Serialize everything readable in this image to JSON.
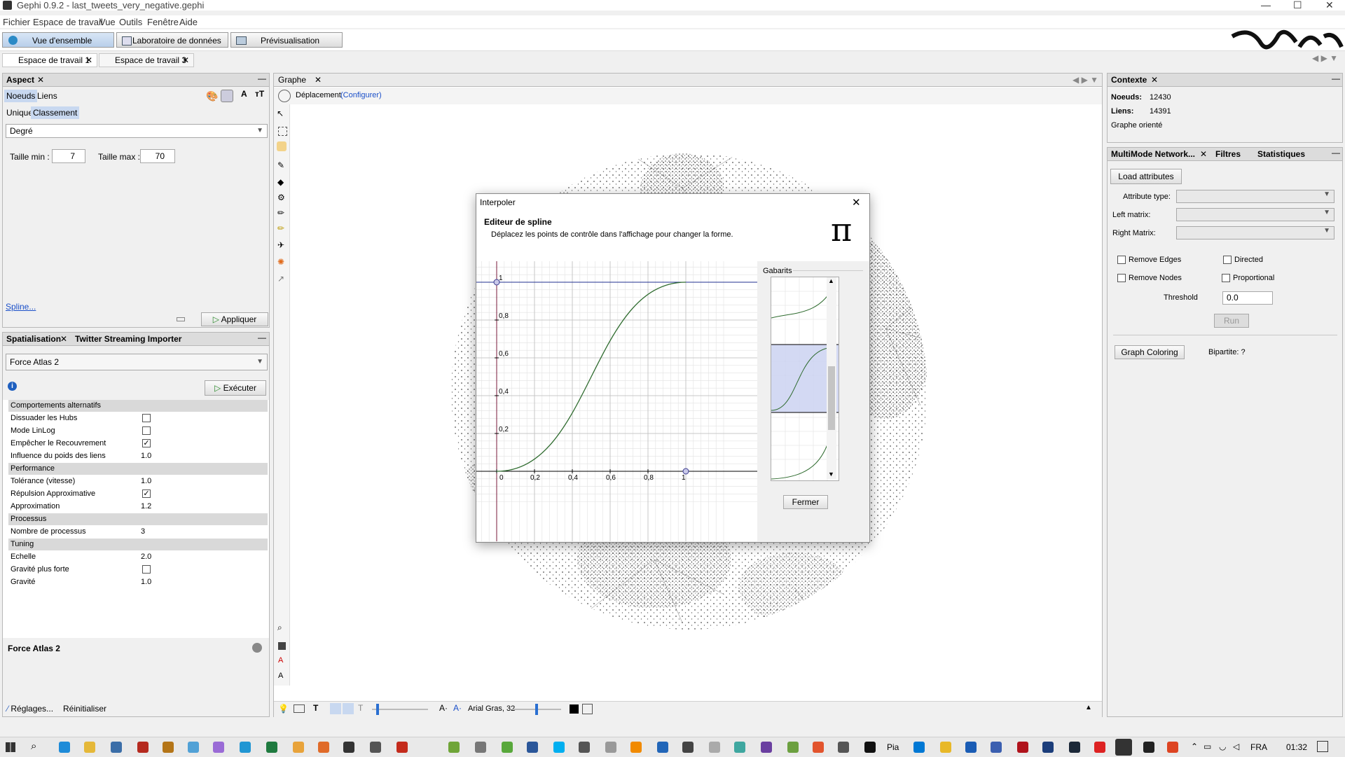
{
  "window": {
    "title": "Gephi 0.9.2 - last_tweets_very_negative.gephi"
  },
  "menu": [
    "Fichier",
    "Espace de travail",
    "Vue",
    "Outils",
    "Fenêtre",
    "Aide"
  ],
  "modes": [
    "Vue d'ensemble",
    "Laboratoire de données",
    "Prévisualisation"
  ],
  "workspaces": [
    "Espace de travail 1",
    "Espace de travail 3"
  ],
  "aspect": {
    "title": "Aspect",
    "tabs": [
      "Noeuds",
      "Liens"
    ],
    "subtabs": [
      "Unique",
      "Classement"
    ],
    "attribute": "Degré",
    "size_min_label": "Taille min :",
    "size_min": "7",
    "size_max_label": "Taille max :",
    "size_max": "70",
    "spline_link": "Spline...",
    "apply": "Appliquer"
  },
  "layout": {
    "tabs": [
      "Spatialisation",
      "Twitter Streaming Importer"
    ],
    "algorithm": "Force Atlas 2",
    "run": "Exécuter",
    "footer_title": "Force Atlas 2",
    "settings": "Réglages...",
    "reset": "Réinitialiser",
    "categories": {
      "alt": "Comportements alternatifs",
      "perf": "Performance",
      "proc": "Processus",
      "tuning": "Tuning"
    },
    "props": {
      "hubs": "Dissuader les Hubs",
      "linlog": "Mode LinLog",
      "overlap": "Empêcher le Recouvrement",
      "weight": "Influence du poids des liens",
      "weight_v": "1.0",
      "tolerance": "Tolérance (vitesse)",
      "tolerance_v": "1.0",
      "approx_rep": "Répulsion Approximative",
      "approx": "Approximation",
      "approx_v": "1.2",
      "threads": "Nombre de processus",
      "threads_v": "3",
      "scale": "Echelle",
      "scale_v": "2.0",
      "strong_grav": "Gravité plus forte",
      "gravity": "Gravité",
      "gravity_v": "1.0"
    }
  },
  "graph": {
    "tab": "Graphe",
    "tool": "Déplacement",
    "configure": "(Configurer)",
    "font": "Arial Gras, 32"
  },
  "context": {
    "title": "Contexte",
    "nodes_label": "Noeuds:",
    "nodes": "12430",
    "edges_label": "Liens:",
    "edges": "14391",
    "type": "Graphe orienté"
  },
  "multimode": {
    "tabs": [
      "MultiMode Network...",
      "Filtres",
      "Statistiques"
    ],
    "load": "Load attributes",
    "attr_type": "Attribute type:",
    "left": "Left matrix:",
    "right": "Right Matrix:",
    "remove_edges": "Remove Edges",
    "directed": "Directed",
    "remove_nodes": "Remove Nodes",
    "proportional": "Proportional",
    "threshold_label": "Threshold",
    "threshold": "0.0",
    "run": "Run",
    "graph_coloring": "Graph Coloring",
    "bipartite": "Bipartite: ?"
  },
  "dialog": {
    "title": "Interpoler",
    "heading": "Editeur de spline",
    "desc": "Déplacez les points de contrôle dans l'affichage pour changer la forme.",
    "templates": "Gabarits",
    "close": "Fermer",
    "ticks_x": [
      "0",
      "0,2",
      "0,4",
      "0,6",
      "0,8",
      "1"
    ],
    "ticks_y": [
      "1",
      "0,8",
      "0,6",
      "0,4",
      "0,2"
    ]
  },
  "taskbar": {
    "lang": "FRA",
    "time": "01:32",
    "pia": "Pia"
  },
  "colors": {
    "accent": "#3a78c2",
    "curve": "#2e6b2e",
    "selected": "#c8d8f0"
  }
}
